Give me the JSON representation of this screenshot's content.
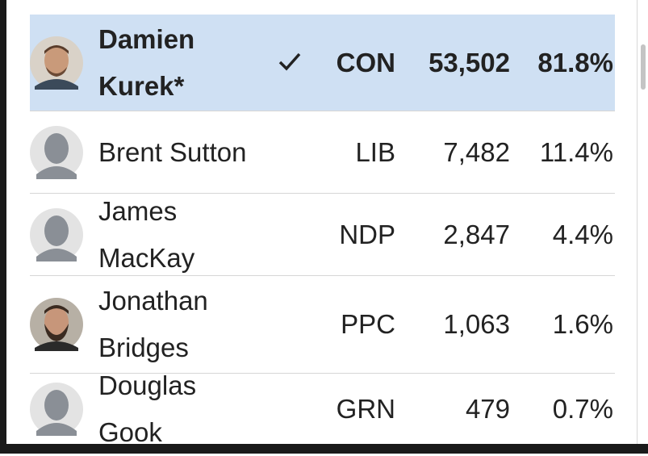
{
  "table": {
    "rows": [
      {
        "name": "Damien Kurek*",
        "party": "CON",
        "votes": "53,502",
        "percent": "81.8%",
        "winner": true,
        "photo": "face"
      },
      {
        "name": "Brent Sutton",
        "party": "LIB",
        "votes": "7,482",
        "percent": "11.4%",
        "winner": false,
        "photo": "placeholder"
      },
      {
        "name": "James MacKay",
        "party": "NDP",
        "votes": "2,847",
        "percent": "4.4%",
        "winner": false,
        "photo": "placeholder"
      },
      {
        "name": "Jonathan Bridges",
        "party": "PPC",
        "votes": "1,063",
        "percent": "1.6%",
        "winner": false,
        "photo": "face-beard"
      },
      {
        "name": "Douglas Gook",
        "party": "GRN",
        "votes": "479",
        "percent": "0.7%",
        "winner": false,
        "photo": "placeholder"
      }
    ]
  }
}
